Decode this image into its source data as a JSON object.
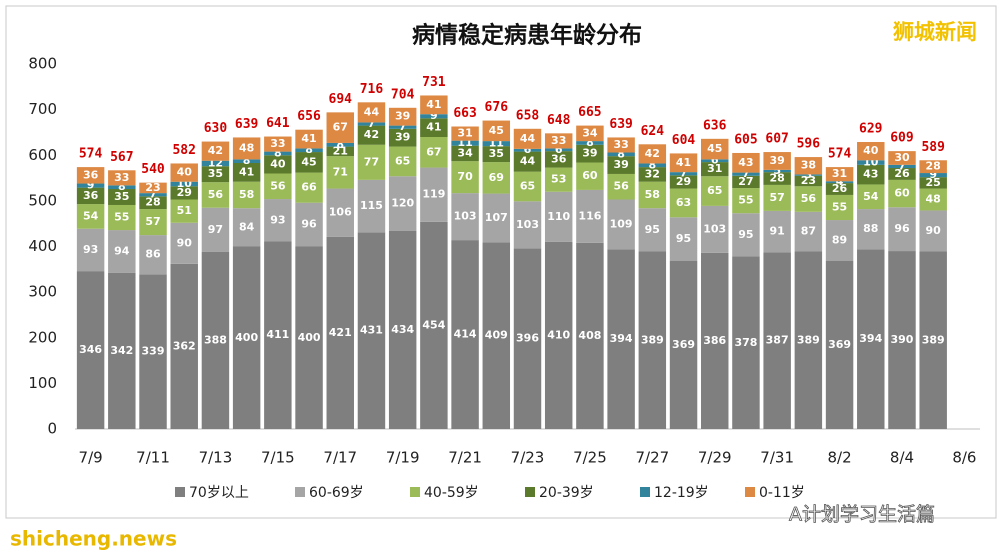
{
  "chart_data": {
    "type": "stacked_bar",
    "title": "病情稳定病患年龄分布",
    "categories": [
      "7/9",
      null,
      "7/11",
      null,
      "7/13",
      null,
      "7/15",
      null,
      "7/17",
      null,
      "7/19",
      null,
      "7/21",
      null,
      "7/23",
      null,
      "7/25",
      null,
      "7/27",
      null,
      "7/29",
      null,
      "7/31",
      null,
      "8/2",
      null,
      "8/4",
      null,
      "8/6"
    ],
    "series": [
      {
        "name": "70岁以上",
        "color": "#7f7f7f",
        "values": [
          346,
          342,
          339,
          362,
          388,
          400,
          411,
          400,
          421,
          431,
          434,
          454,
          414,
          409,
          396,
          410,
          408,
          394,
          389,
          369,
          386,
          378,
          387,
          389,
          369,
          394,
          390,
          389,
          null
        ]
      },
      {
        "name": "60-69岁",
        "color": "#a5a5a5",
        "values": [
          93,
          94,
          86,
          90,
          97,
          84,
          93,
          96,
          106,
          115,
          120,
          119,
          103,
          107,
          103,
          110,
          116,
          109,
          95,
          95,
          103,
          95,
          91,
          87,
          89,
          88,
          96,
          90,
          null
        ]
      },
      {
        "name": "40-59岁",
        "color": "#9bbb59",
        "values": [
          54,
          55,
          57,
          51,
          56,
          58,
          56,
          66,
          71,
          77,
          65,
          67,
          70,
          69,
          65,
          53,
          60,
          56,
          58,
          63,
          65,
          55,
          57,
          56,
          55,
          54,
          60,
          48,
          null
        ]
      },
      {
        "name": "20-39岁",
        "color": "#5b7a2b",
        "values": [
          36,
          35,
          28,
          29,
          35,
          41,
          40,
          45,
          21,
          42,
          39,
          41,
          34,
          35,
          44,
          36,
          39,
          39,
          32,
          29,
          31,
          27,
          28,
          23,
          26,
          43,
          26,
          25,
          null
        ]
      },
      {
        "name": "12-19岁",
        "color": "#31849b",
        "values": [
          9,
          8,
          7,
          10,
          12,
          8,
          8,
          8,
          8,
          7,
          7,
          9,
          11,
          11,
          6,
          6,
          8,
          8,
          8,
          7,
          6,
          7,
          5,
          3,
          4,
          10,
          7,
          9,
          null
        ]
      },
      {
        "name": "0-11岁",
        "color": "#dd8843",
        "values": [
          36,
          33,
          23,
          40,
          42,
          48,
          33,
          41,
          67,
          44,
          39,
          41,
          31,
          45,
          44,
          33,
          34,
          33,
          42,
          41,
          45,
          43,
          39,
          38,
          31,
          40,
          30,
          28,
          null
        ]
      }
    ],
    "totals": [
      574,
      567,
      540,
      582,
      630,
      639,
      641,
      656,
      694,
      716,
      704,
      731,
      663,
      676,
      658,
      648,
      665,
      639,
      624,
      604,
      636,
      605,
      607,
      596,
      574,
      629,
      609,
      589,
      null
    ],
    "ylim": [
      0,
      800
    ],
    "yticks": [
      0,
      100,
      200,
      300,
      400,
      500,
      600,
      700,
      800
    ],
    "grid": false,
    "legend": "bottom"
  },
  "watermarks": [
    "狮城新闻",
    "shicheng.news",
    "A计划学习生活篇"
  ]
}
